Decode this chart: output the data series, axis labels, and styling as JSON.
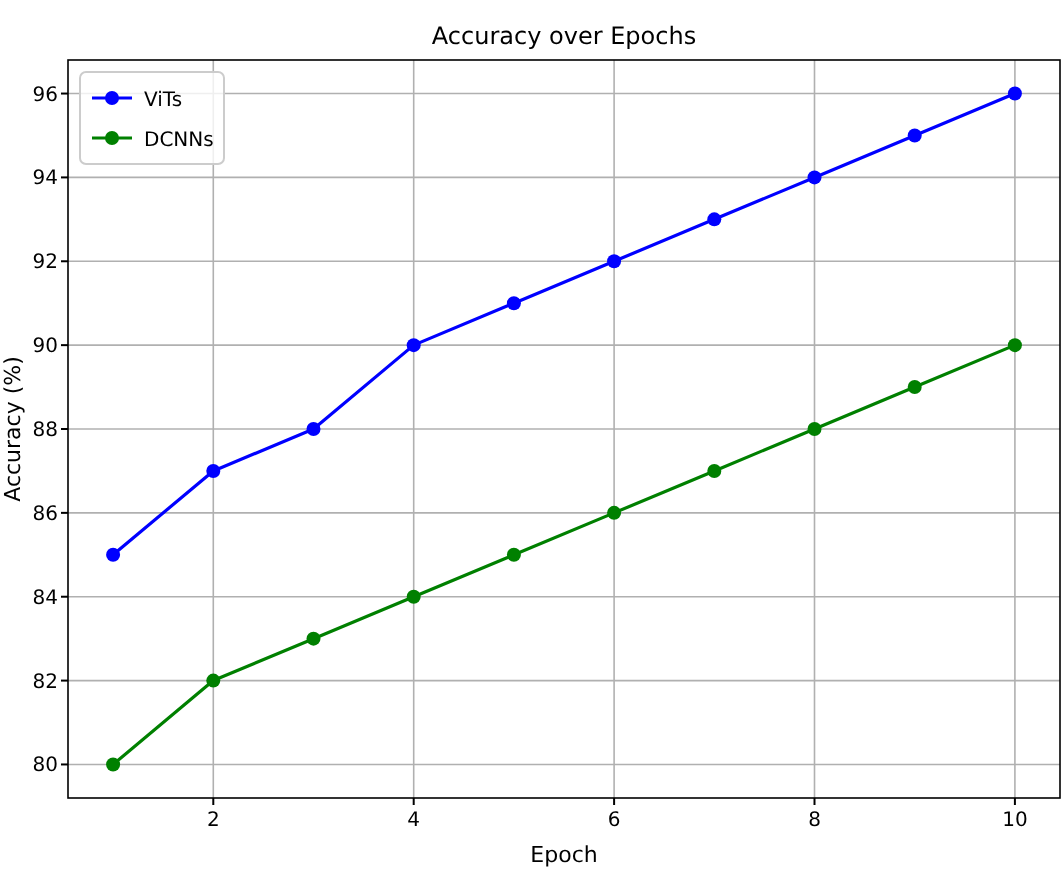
{
  "chart_data": {
    "type": "line",
    "title": "Accuracy over Epochs",
    "xlabel": "Epoch",
    "ylabel": "Accuracy (%)",
    "x": [
      1,
      2,
      3,
      4,
      5,
      6,
      7,
      8,
      9,
      10
    ],
    "series": [
      {
        "name": "ViTs",
        "color": "#0000ff",
        "values": [
          85,
          87,
          88,
          90,
          91,
          92,
          93,
          94,
          95,
          96
        ]
      },
      {
        "name": "DCNNs",
        "color": "#008000",
        "values": [
          80,
          82,
          83,
          84,
          85,
          86,
          87,
          88,
          89,
          90
        ]
      }
    ],
    "xlim": [
      0.55,
      10.45
    ],
    "ylim": [
      79.2,
      96.8
    ],
    "xticks": [
      2,
      4,
      6,
      8,
      10
    ],
    "yticks": [
      80,
      82,
      84,
      86,
      88,
      90,
      92,
      94,
      96
    ],
    "grid": true,
    "legend": "top left",
    "marker": "circle",
    "line_style": "solid"
  }
}
